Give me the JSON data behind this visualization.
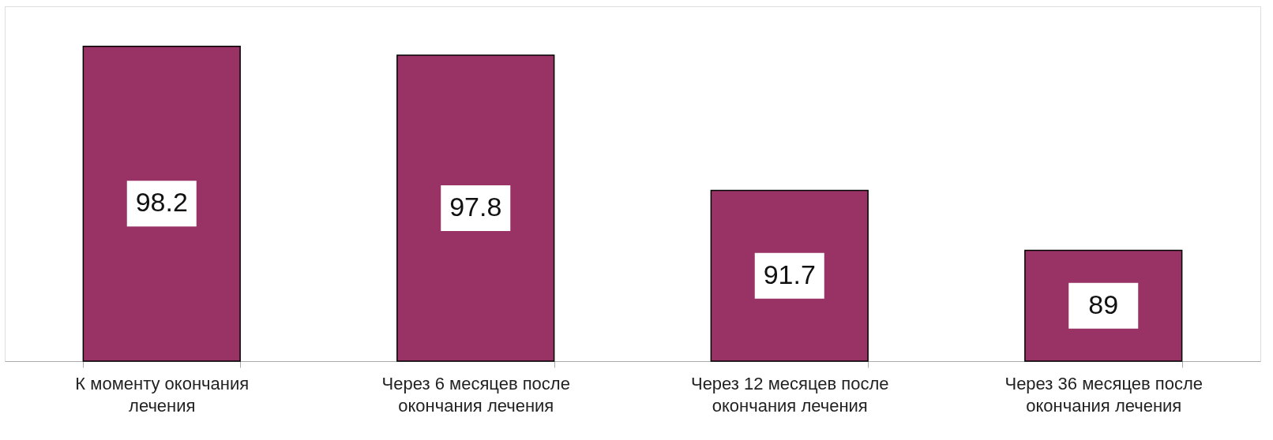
{
  "chart_data": {
    "type": "bar",
    "categories": [
      "К моменту окончания\nлечения",
      "Через 6 месяцев после\nокончания лечения",
      "Через 12 месяцев после\nокончания лечения",
      "Через 36 месяцев после\nокончания лечения"
    ],
    "values": [
      98.2,
      97.8,
      91.7,
      89
    ],
    "color": "#993366",
    "ylim": [
      84,
      100
    ],
    "data_labels": true,
    "tick_labels": "x",
    "grid": false
  }
}
